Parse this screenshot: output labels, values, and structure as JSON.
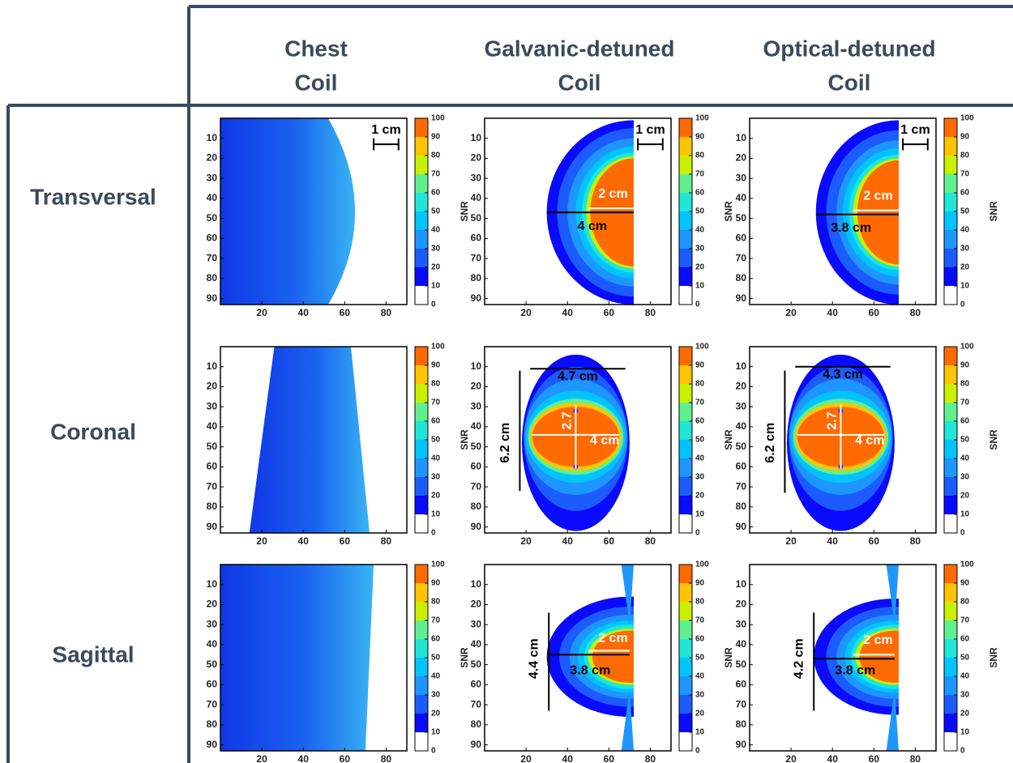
{
  "header": {
    "columns": [
      [
        "Chest",
        "Coil"
      ],
      [
        "Galvanic-detuned",
        "Coil"
      ],
      [
        "Optical-detuned",
        "Coil"
      ]
    ],
    "rows": [
      "Transversal",
      "Coronal",
      "Sagittal"
    ]
  },
  "axes": {
    "xlim": [
      0,
      90
    ],
    "ylim": [
      0,
      93
    ],
    "xticks": [
      20,
      40,
      60,
      80
    ],
    "yticks": [
      10,
      20,
      30,
      40,
      50,
      60,
      70,
      80,
      90
    ]
  },
  "colorbar": {
    "label": "SNR",
    "ticks": [
      0,
      10,
      20,
      30,
      40,
      50,
      60,
      70,
      80,
      90,
      100
    ],
    "colors": [
      "#ffffff",
      "#0a0aff",
      "#1c5cff",
      "#1e96ff",
      "#00c4ff",
      "#20e6d8",
      "#60f090",
      "#c8f000",
      "#ffc400",
      "#ff6a00"
    ]
  },
  "panels": [
    [
      {
        "annotations": [
          "1 cm"
        ]
      },
      {
        "annotations": [
          "1 cm",
          "2 cm",
          "4 cm"
        ]
      },
      {
        "annotations": [
          "1 cm",
          "2 cm",
          "3.8 cm"
        ]
      }
    ],
    [
      {
        "annotations": []
      },
      {
        "annotations": [
          "4.7 cm",
          "2.7",
          "4 cm",
          "6.2 cm"
        ]
      },
      {
        "annotations": [
          "4.3 cm",
          "2.7",
          "4 cm",
          "6.2 cm"
        ]
      }
    ],
    [
      {
        "annotations": []
      },
      {
        "annotations": [
          "2 cm",
          "3.8 cm",
          "4.4 cm"
        ]
      },
      {
        "annotations": [
          "2 cm",
          "3.8 cm",
          "4.2 cm"
        ]
      }
    ]
  ]
}
